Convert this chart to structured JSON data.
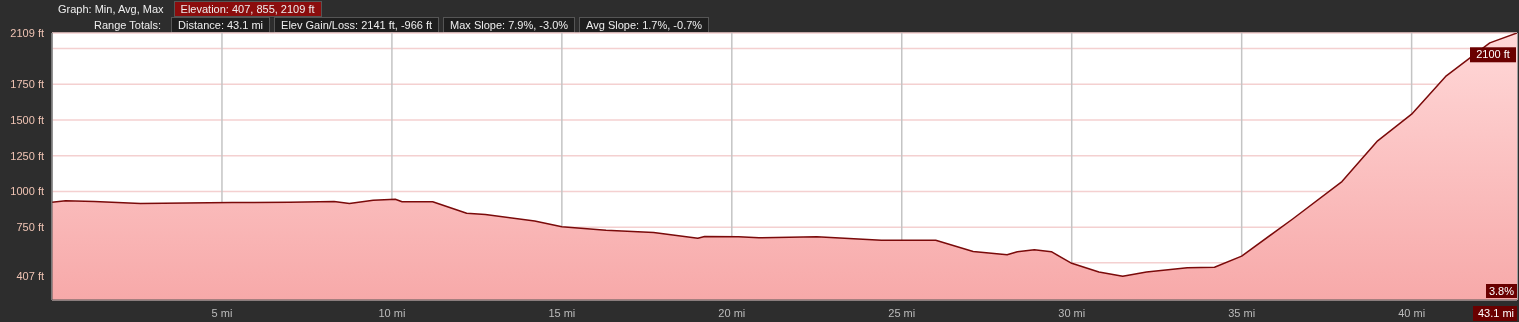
{
  "chart_data": {
    "type": "area",
    "annotations": [
      "Graph: Min, Avg, Max",
      "Elevation: 407, 855, 2109 ft",
      "Range Totals:",
      "Distance: 43.1 mi",
      "Elev Gain/Loss: 2141 ft, -966 ft",
      "Max Slope: 7.9%, -3.0%",
      "Avg Slope: 1.7%, -0.7%",
      {
        "text": "2100 ft",
        "x": 43.1,
        "y": 2100
      },
      "3.8%"
    ],
    "x": [
      0,
      0.4,
      1.25,
      2.6,
      5.3,
      7.0,
      8.3,
      8.75,
      9.45,
      10.1,
      10.3,
      11.2,
      12.2,
      12.75,
      14.2,
      15.0,
      16.3,
      17.7,
      19.0,
      19.2,
      20.2,
      20.8,
      22.5,
      24.4,
      25.1,
      26.0,
      27.1,
      28.1,
      28.4,
      28.9,
      29.4,
      30.0,
      30.8,
      31.5,
      32.2,
      33.4,
      34.2,
      35.0,
      36.5,
      37.95,
      39.0,
      40.0,
      41.0,
      42.3,
      43.1
    ],
    "series": [
      {
        "color": "#7a0a0a",
        "values": [
          925,
          935,
          930,
          915,
          922,
          925,
          930,
          915,
          938,
          945,
          928,
          928,
          847,
          838,
          793,
          753,
          729,
          712,
          672,
          685,
          683,
          675,
          683,
          658,
          658,
          658,
          580,
          557,
          578,
          591,
          578,
          497,
          436,
          406,
          436,
          466,
          469,
          547,
          807,
          1069,
          1354,
          1541,
          1805,
          2040,
          2109
        ]
      }
    ],
    "xlim": [
      0,
      43.1
    ],
    "xticks": [
      {
        "value": 5,
        "label": "5 mi"
      },
      {
        "value": 10,
        "label": "10 mi"
      },
      {
        "value": 15,
        "label": "15 mi"
      },
      {
        "value": 20,
        "label": "20 mi"
      },
      {
        "value": 25,
        "label": "25 mi"
      },
      {
        "value": 30,
        "label": "30 mi"
      },
      {
        "value": 35,
        "label": "35 mi"
      },
      {
        "value": 40,
        "label": "40 mi"
      },
      {
        "value": 43.1,
        "label": "43.1 mi"
      }
    ],
    "ylim": [
      240,
      2109
    ],
    "yticks": [
      {
        "value": 407,
        "label": "407 ft"
      },
      {
        "value": 500,
        "label": null
      },
      {
        "value": 750,
        "label": "750 ft"
      },
      {
        "value": 1000,
        "label": "1000 ft"
      },
      {
        "value": 1250,
        "label": "1250 ft"
      },
      {
        "value": 1500,
        "label": "1500 ft"
      },
      {
        "value": 1750,
        "label": "1750 ft"
      },
      {
        "value": 2000,
        "label": null
      },
      {
        "value": 2109,
        "label": "2109 ft"
      }
    ],
    "grid": true
  }
}
